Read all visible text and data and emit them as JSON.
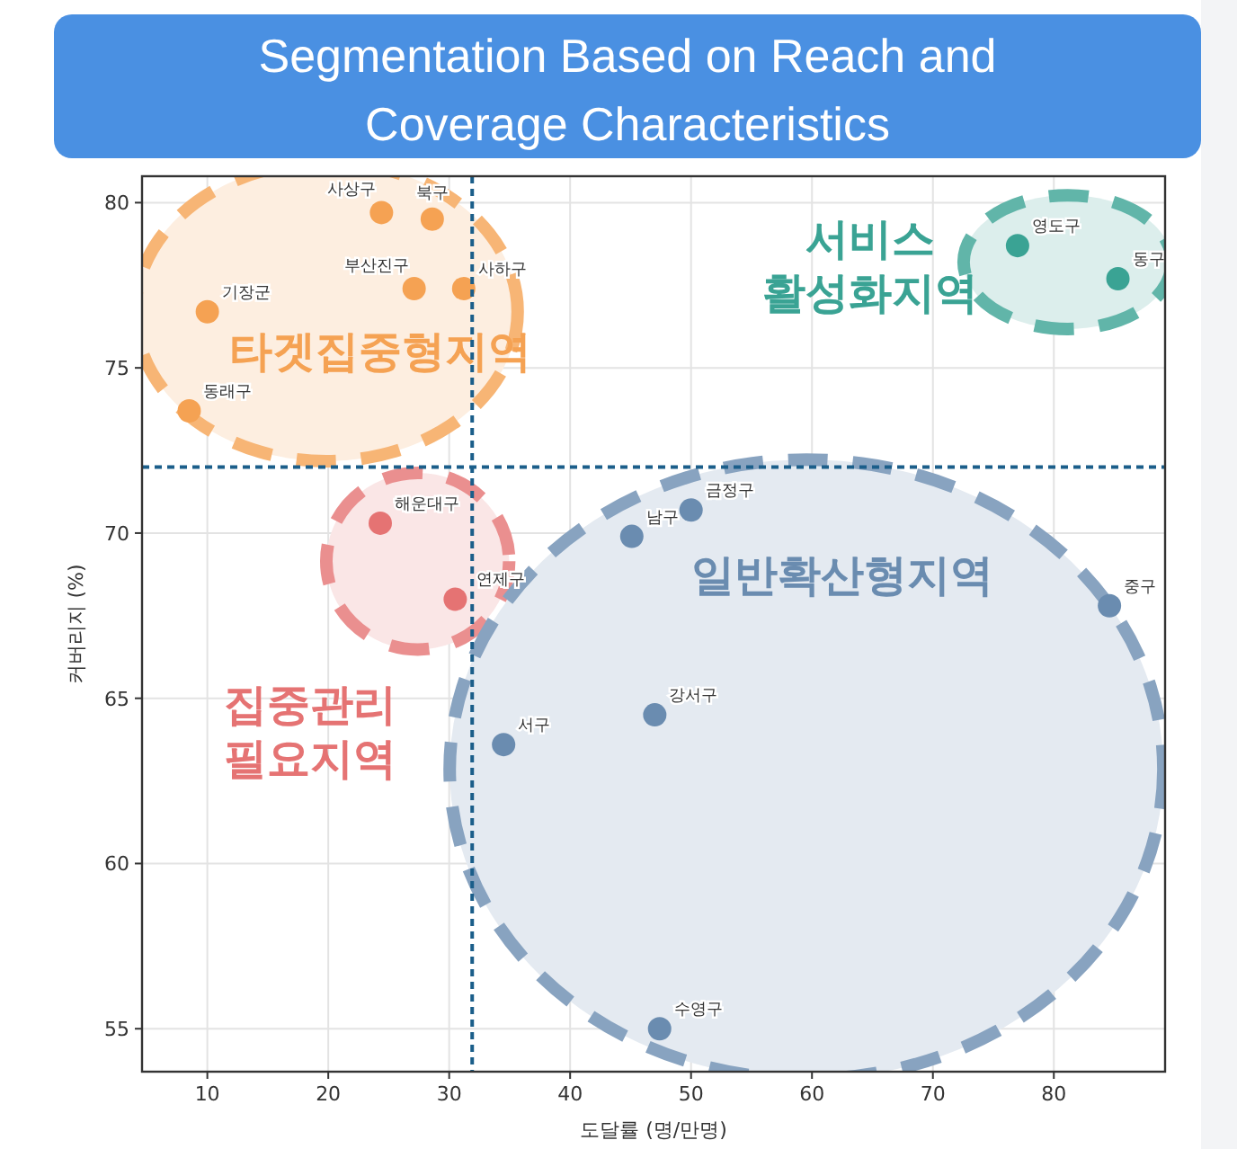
{
  "chart_data": {
    "type": "scatter",
    "title": "Segmentation Based on Reach and Coverage Characteristics",
    "xlabel": "도달률 (명/만명)",
    "ylabel": "커버리지 (%)",
    "xlim": [
      4.6,
      89.2
    ],
    "ylim": [
      53.7,
      80.8
    ],
    "xticks": [
      10,
      20,
      30,
      40,
      50,
      60,
      70,
      80
    ],
    "yticks": [
      55,
      60,
      65,
      70,
      75,
      80
    ],
    "grid": true,
    "marker": "circle",
    "series": [
      {
        "name": "타겟집중형지역",
        "color": "#f5a253",
        "x": [
          10.0,
          8.5,
          24.4,
          28.6,
          27.1,
          31.2
        ],
        "values": [
          76.7,
          73.7,
          79.7,
          79.5,
          77.4,
          77.4
        ]
      },
      {
        "name": "집중관리 필요지역",
        "color": "#e57373",
        "x": [
          24.3,
          30.5
        ],
        "values": [
          70.3,
          68.0
        ]
      },
      {
        "name": "일반확산형지역",
        "color": "#6a8cb0",
        "x": [
          45.1,
          50.0,
          47.0,
          34.5,
          47.4,
          84.6
        ],
        "values": [
          69.9,
          70.7,
          64.5,
          63.6,
          55.0,
          67.8
        ]
      },
      {
        "name": "서비스 활성화지역",
        "color": "#3aa394",
        "x": [
          77.0,
          85.3
        ],
        "values": [
          78.7,
          77.7
        ]
      }
    ],
    "ref_lines": [
      {
        "axis": "x",
        "value": 31.9,
        "color": "#1b5e8a",
        "line_style": "dashed"
      },
      {
        "axis": "y",
        "value": 72.0,
        "color": "#1b5e8a",
        "line_style": "dashed"
      }
    ],
    "annotations": [
      {
        "text": "기장군",
        "x": 10.0,
        "y": 76.7
      },
      {
        "text": "동래구",
        "x": 8.5,
        "y": 73.7
      },
      {
        "text": "사상구",
        "x": 24.4,
        "y": 79.7
      },
      {
        "text": "북구",
        "x": 28.6,
        "y": 79.5
      },
      {
        "text": "부산진구",
        "x": 27.1,
        "y": 77.4
      },
      {
        "text": "사하구",
        "x": 31.2,
        "y": 77.4
      },
      {
        "text": "해운대구",
        "x": 24.3,
        "y": 70.3
      },
      {
        "text": "연제구",
        "x": 30.5,
        "y": 68.0
      },
      {
        "text": "남구",
        "x": 45.1,
        "y": 69.9
      },
      {
        "text": "금정구",
        "x": 50.0,
        "y": 70.7
      },
      {
        "text": "강서구",
        "x": 47.0,
        "y": 64.5
      },
      {
        "text": "서구",
        "x": 34.5,
        "y": 63.6
      },
      {
        "text": "수영구",
        "x": 47.4,
        "y": 55.0
      },
      {
        "text": "중구",
        "x": 84.6,
        "y": 67.8
      },
      {
        "text": "영도구",
        "x": 77.0,
        "y": 78.7
      },
      {
        "text": "동구",
        "x": 85.3,
        "y": 77.7
      }
    ]
  }
}
